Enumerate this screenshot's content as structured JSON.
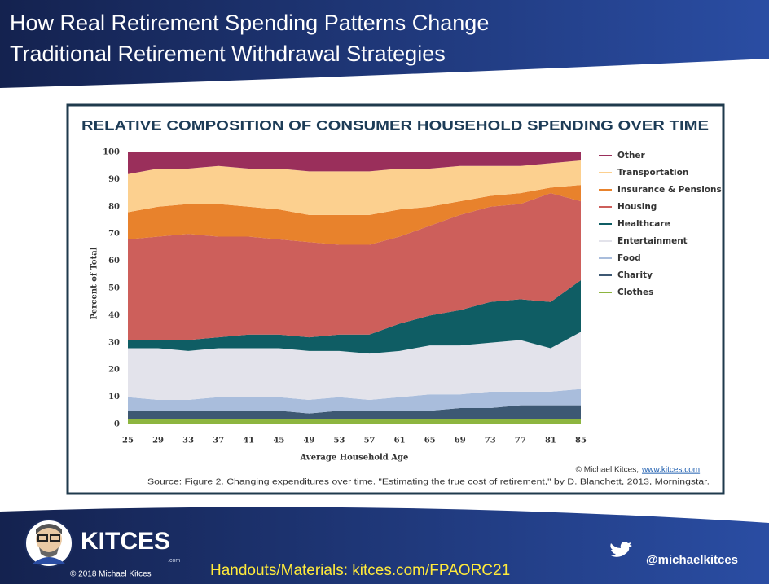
{
  "slide": {
    "title_lines": [
      "How Real Retirement Spending Patterns Change",
      "Traditional Retirement Withdrawal Strategies"
    ]
  },
  "chart_data": {
    "type": "area",
    "stacked": true,
    "title": "RELATIVE COMPOSITION OF CONSUMER HOUSEHOLD SPENDING OVER TIME",
    "ylabel": "Percent of Total",
    "xlabel": "Average Household Age",
    "credit": "© Michael Kitces,",
    "credit_link": "www.kitces.com",
    "source": "Source: Figure 2. Changing expenditures over time. \"Estimating the true cost of retirement,\" by D. Blanchett, 2013, Morningstar.",
    "x": [
      25,
      29,
      33,
      37,
      41,
      45,
      49,
      53,
      57,
      61,
      65,
      69,
      73,
      77,
      81,
      85
    ],
    "xlim": [
      25,
      85
    ],
    "xticks": [
      25,
      29,
      33,
      37,
      41,
      45,
      49,
      53,
      57,
      61,
      65,
      69,
      73,
      77,
      81,
      85
    ],
    "ylim": [
      0,
      100
    ],
    "yticks": [
      0,
      10,
      20,
      30,
      40,
      50,
      60,
      70,
      80,
      90,
      100
    ],
    "grid": false,
    "series": [
      {
        "name": "Clothes",
        "color": "#8db53f",
        "values": [
          2,
          2,
          2,
          2,
          2,
          2,
          2,
          2,
          2,
          2,
          2,
          2,
          2,
          2,
          2,
          2
        ]
      },
      {
        "name": "Charity",
        "color": "#3d5873",
        "values": [
          3,
          3,
          3,
          3,
          3,
          3,
          2,
          3,
          3,
          3,
          3,
          4,
          4,
          5,
          5,
          5
        ]
      },
      {
        "name": "Food",
        "color": "#a9bddc",
        "values": [
          5,
          4,
          4,
          5,
          5,
          5,
          5,
          5,
          4,
          5,
          6,
          5,
          6,
          5,
          5,
          6
        ]
      },
      {
        "name": "Entertainment",
        "color": "#e3e3eb",
        "values": [
          18,
          19,
          18,
          18,
          18,
          18,
          18,
          17,
          17,
          17,
          18,
          18,
          18,
          19,
          16,
          21
        ]
      },
      {
        "name": "Healthcare",
        "color": "#0f5d64",
        "values": [
          3,
          3,
          4,
          4,
          5,
          5,
          5,
          6,
          7,
          10,
          11,
          13,
          15,
          15,
          17,
          19
        ]
      },
      {
        "name": "Housing",
        "color": "#cd5f5b",
        "values": [
          37,
          38,
          39,
          37,
          36,
          35,
          35,
          33,
          33,
          32,
          33,
          35,
          35,
          35,
          40,
          29
        ]
      },
      {
        "name": "Insurance & Pensions",
        "color": "#e8822c",
        "values": [
          10,
          11,
          11,
          12,
          11,
          11,
          10,
          11,
          11,
          10,
          7,
          5,
          4,
          4,
          2,
          6
        ]
      },
      {
        "name": "Transportation",
        "color": "#fcd08f",
        "values": [
          14,
          14,
          13,
          14,
          14,
          15,
          16,
          16,
          16,
          15,
          14,
          13,
          11,
          10,
          9,
          9
        ]
      },
      {
        "name": "Other",
        "color": "#9a2f5b",
        "values": [
          8,
          6,
          6,
          5,
          6,
          6,
          7,
          7,
          7,
          6,
          6,
          5,
          5,
          5,
          4,
          3
        ]
      }
    ]
  },
  "footer": {
    "brand": "KITCES",
    "brand_suffix": ".com",
    "copyright": "© 2018 Michael Kitces",
    "handouts": "Handouts/Materials: kitces.com/FPAORC21",
    "twitter": "@michaelkitces"
  }
}
